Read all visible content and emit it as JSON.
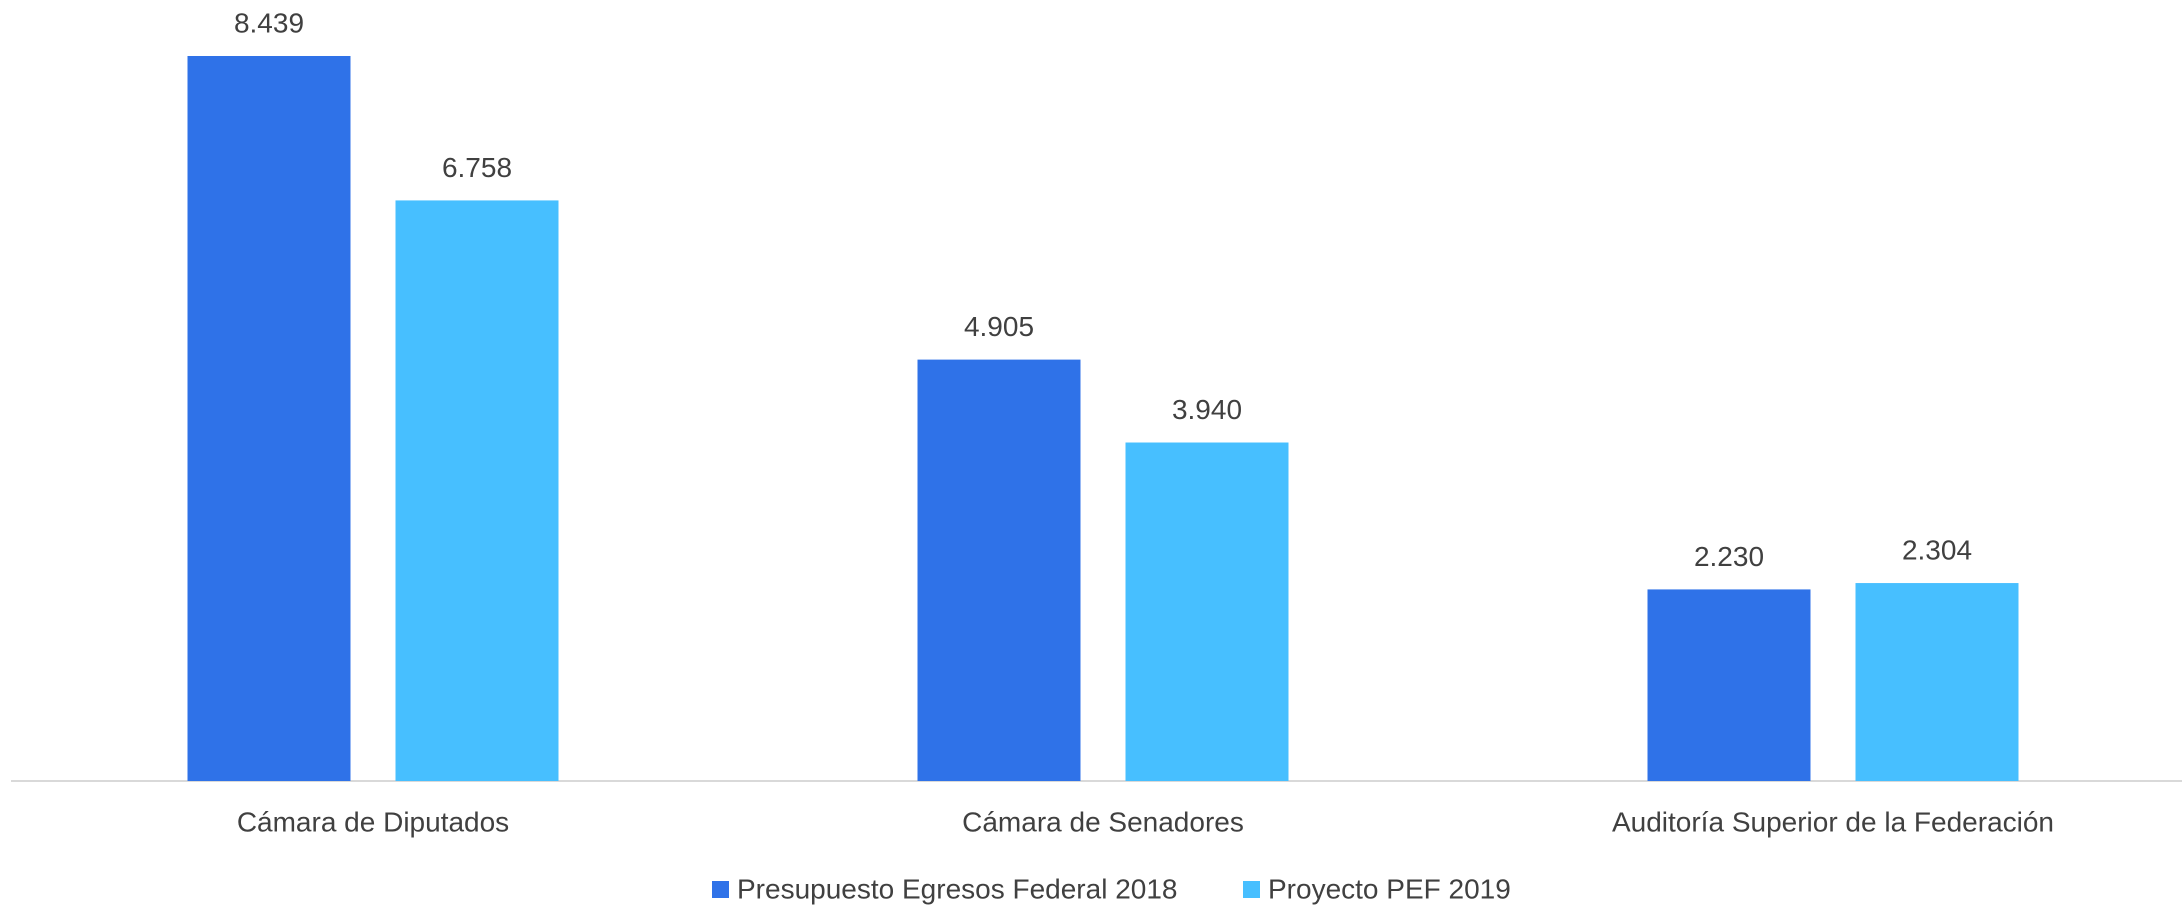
{
  "chart_data": {
    "type": "bar",
    "categories": [
      "Cámara de Diputados",
      "Cámara de Senadores",
      "Auditoría Superior de la Federación"
    ],
    "series": [
      {
        "name": "Presupuesto Egresos Federal 2018",
        "color": "#2f72e8",
        "values": [
          8.439,
          4.905,
          2.23
        ],
        "value_labels": [
          "8.439",
          "4.905",
          "2.230"
        ]
      },
      {
        "name": "Proyecto PEF 2019",
        "color": "#47bfff",
        "values": [
          6.758,
          3.94,
          2.304
        ],
        "value_labels": [
          "6.758",
          "3.940",
          "2.304"
        ]
      }
    ],
    "legend": "bottom"
  }
}
